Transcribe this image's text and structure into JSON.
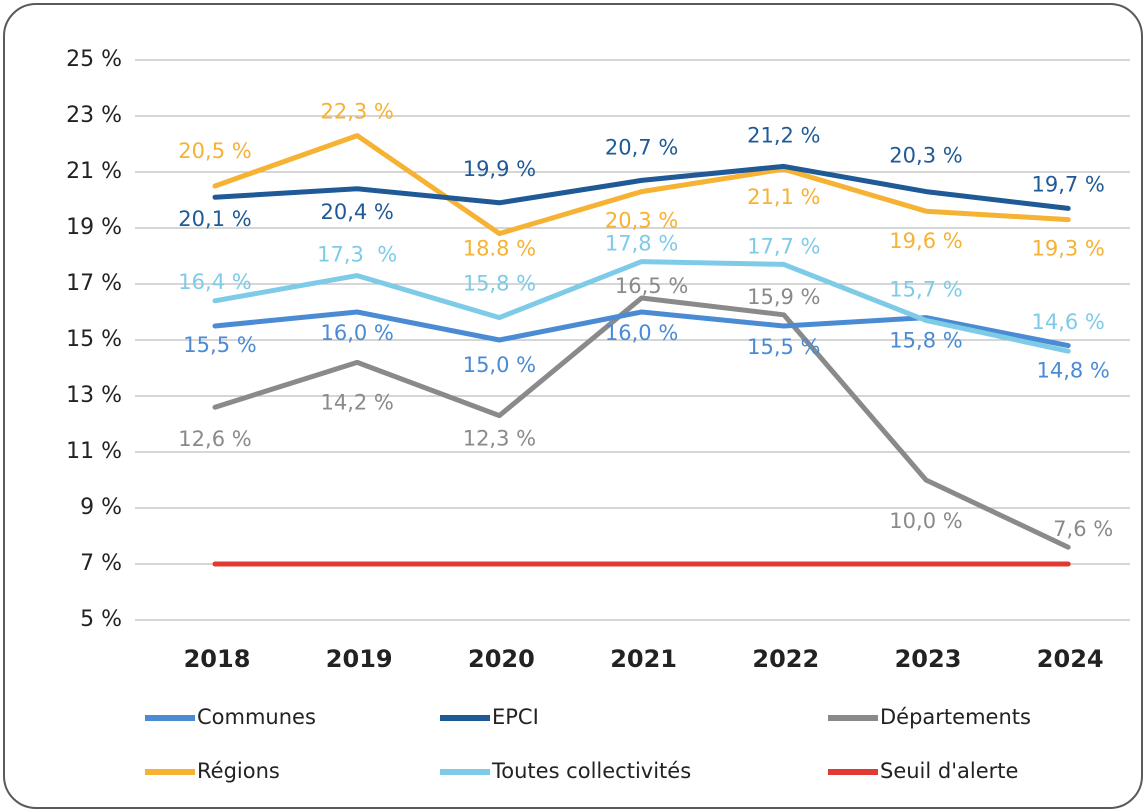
{
  "chart_data": {
    "type": "line",
    "categories": [
      "2018",
      "2019",
      "2020",
      "2021",
      "2022",
      "2023",
      "2024"
    ],
    "ylim": [
      5,
      25
    ],
    "yticks": [
      {
        "value": 5,
        "label": "5 %"
      },
      {
        "value": 7,
        "label": "7 %"
      },
      {
        "value": 9,
        "label": "9 %"
      },
      {
        "value": 11,
        "label": "11 %"
      },
      {
        "value": 13,
        "label": "13 %"
      },
      {
        "value": 15,
        "label": "15 %"
      },
      {
        "value": 17,
        "label": "17 %"
      },
      {
        "value": 19,
        "label": "19 %"
      },
      {
        "value": 21,
        "label": "21 %"
      },
      {
        "value": 23,
        "label": "23 %"
      },
      {
        "value": 25,
        "label": "25 %"
      }
    ],
    "grid": true,
    "series": [
      {
        "name": "Communes",
        "color": "#4a8bd4",
        "values": [
          15.5,
          16.0,
          15.0,
          16.0,
          15.5,
          15.8,
          14.8
        ],
        "value_labels": [
          "15,5 %",
          "16,0 %",
          "15,0 %",
          "16,0 %",
          "15,5 %",
          "15,8 %",
          "14,8 %"
        ]
      },
      {
        "name": "EPCI",
        "color": "#1f5a96",
        "values": [
          20.1,
          20.4,
          19.9,
          20.7,
          21.2,
          20.3,
          19.7
        ],
        "value_labels": [
          "20,1 %",
          "20,4 %",
          "19,9 %",
          "20,7 %",
          "21,2 %",
          "20,3 %",
          "19,7 %"
        ]
      },
      {
        "name": "Départements",
        "color": "#8a8a8a",
        "values": [
          12.6,
          14.2,
          12.3,
          16.5,
          15.9,
          10.0,
          7.6
        ],
        "value_labels": [
          "12,6 %",
          "14,2 %",
          "12,3 %",
          "16,5 %",
          "15,9 %",
          "10,0 %",
          "7,6 %"
        ]
      },
      {
        "name": "Régions",
        "color": "#f5b233",
        "values": [
          20.5,
          22.3,
          18.8,
          20.3,
          21.1,
          19.6,
          19.3
        ],
        "value_labels": [
          "20,5 %",
          "22,3 %",
          "18.8 %",
          "20,3 %",
          "21,1 %",
          "19,6 %",
          "19,3 %"
        ]
      },
      {
        "name": "Toutes collectivités",
        "color": "#7ecbe8",
        "values": [
          16.4,
          17.3,
          15.8,
          17.8,
          17.7,
          15.7,
          14.6
        ],
        "value_labels": [
          "16,4 %",
          "17,3  %",
          "15,8 %",
          "17,8 %",
          "17,7 %",
          "15,7 %",
          "14,6 %"
        ]
      },
      {
        "name": "Seuil d'alerte",
        "color": "#e03a32",
        "values": [
          7,
          7,
          7,
          7,
          7,
          7,
          7
        ]
      }
    ]
  }
}
